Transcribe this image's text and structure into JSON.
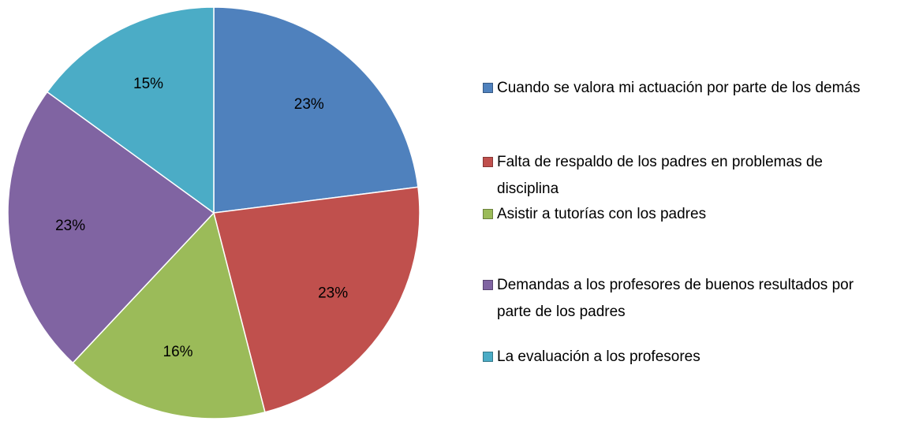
{
  "chart_data": {
    "type": "pie",
    "categories": [
      "Cuando se valora mi actuación por parte de los demás",
      "Falta de respaldo de los padres en problemas de disciplina",
      "Asistir a tutorías con los padres",
      "Demandas a los profesores de buenos resultados por parte de los padres",
      "La evaluación a los profesores"
    ],
    "values": [
      23,
      23,
      16,
      23,
      15
    ],
    "value_labels": [
      "23%",
      "23%",
      "16%",
      "23%",
      "15%"
    ],
    "colors": [
      "#4f81bd",
      "#c0504d",
      "#9bbb59",
      "#8064a2",
      "#4bacc6"
    ],
    "legend": "right"
  }
}
